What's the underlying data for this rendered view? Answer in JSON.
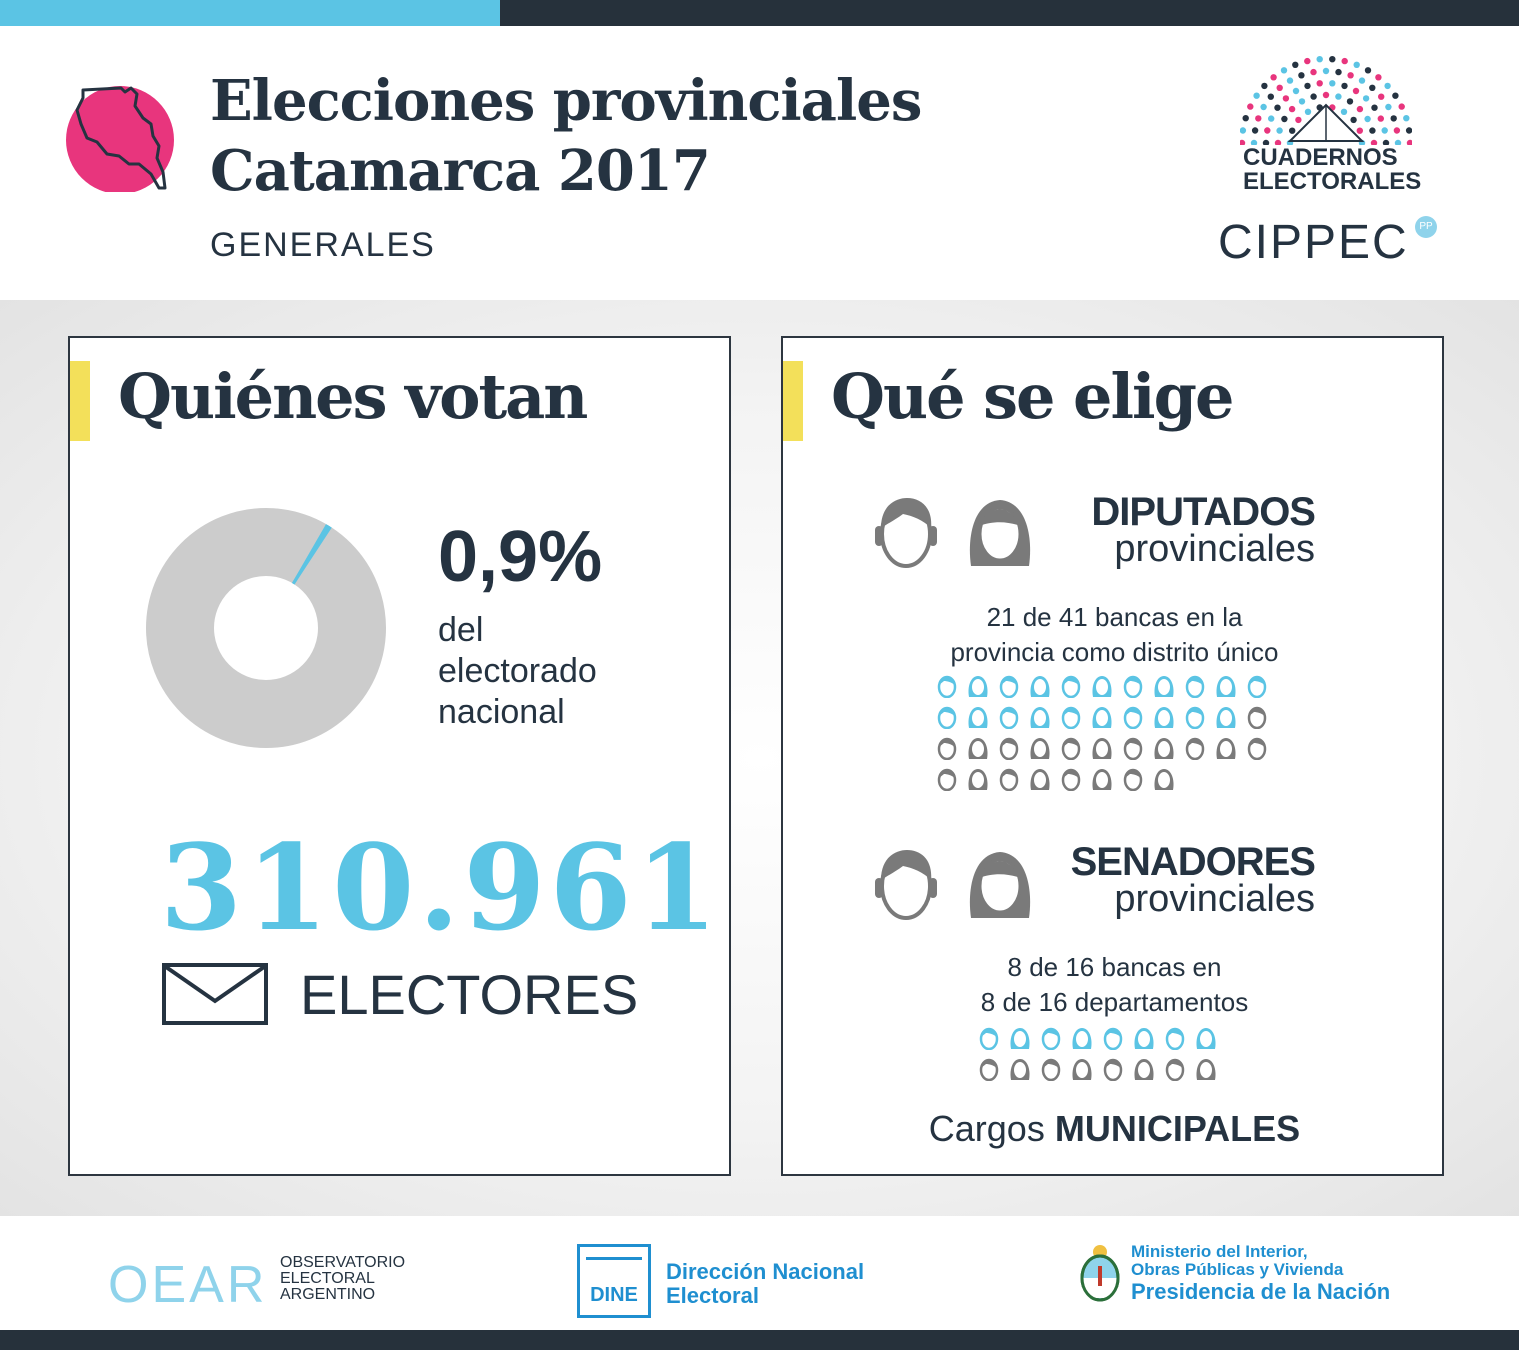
{
  "header": {
    "title_line1": "Elecciones provinciales",
    "title_line2": "Catamarca 2017",
    "subtitle": "GENERALES",
    "logo_line1": "CUADERNOS",
    "logo_line2": "ELECTORALES",
    "logo_org": "CIPPEC",
    "province_color": "#e8357d"
  },
  "quienes": {
    "title": "Quiénes votan",
    "percent": "0,9%",
    "percent_value": 0.9,
    "desc_line1": "del",
    "desc_line2": "electorado",
    "desc_line3": "nacional",
    "voters": "310.961",
    "voters_label": "ELECTORES"
  },
  "que": {
    "title": "Qué se elige",
    "diputados": {
      "label_bold": "DIPUTADOS",
      "label_light": "provinciales",
      "desc_line1": "21 de 41 bancas en la",
      "desc_line2": "provincia como distrito único",
      "elected": 21,
      "total": 41
    },
    "senadores": {
      "label_bold": "SENADORES",
      "label_light": "provinciales",
      "desc_line1": "8 de 16 bancas en",
      "desc_line2": "8 de 16 departamentos",
      "elected": 8,
      "total": 16
    },
    "cargos_prefix": "Cargos",
    "cargos_bold": "MUNICIPALES"
  },
  "footer": {
    "oear_logo": "OEAR",
    "oear_line1": "OBSERVATORIO",
    "oear_line2": "ELECTORAL",
    "oear_line3": "ARGENTINO",
    "dine_logo": "DINE",
    "dine_line1": "Dirección Nacional",
    "dine_line2": "Electoral",
    "min_line1": "Ministerio del Interior,",
    "min_line2": "Obras Públicas y Vivienda",
    "min_line3": "Presidencia de la Nación"
  },
  "colors": {
    "accent_blue": "#5bc4e4",
    "dark": "#253341",
    "gray": "#7a7a7a",
    "yellow": "#f3e05a",
    "pink": "#e8357d"
  }
}
